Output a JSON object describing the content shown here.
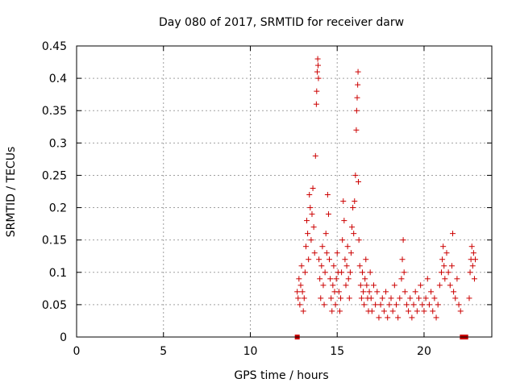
{
  "chart_data": {
    "type": "scatter",
    "title": "Day 080 of 2017, SRMTID for receiver darw",
    "xlabel": "GPS time / hours",
    "ylabel": "SRMTID / TECUs",
    "xlim": [
      0,
      23.9
    ],
    "ylim": [
      0,
      0.45
    ],
    "x_ticks": [
      0,
      5,
      10,
      15,
      20
    ],
    "y_ticks": [
      0,
      0.05,
      0.1,
      0.15,
      0.2,
      0.25,
      0.3,
      0.35,
      0.4,
      0.45
    ],
    "x_tick_labels": [
      "0",
      "5",
      "10",
      "15",
      "20"
    ],
    "y_tick_labels": [
      "0",
      "0.05",
      "0.1",
      "0.15",
      "0.2",
      "0.25",
      "0.3",
      "0.35",
      "0.4",
      "0.45"
    ],
    "grid": true,
    "marker": "plus",
    "color": "#cc0000",
    "series": [
      {
        "name": "SRMTID",
        "points": [
          [
            12.7,
            0.07
          ],
          [
            12.75,
            0.06
          ],
          [
            12.8,
            0.09
          ],
          [
            12.85,
            0.05
          ],
          [
            12.9,
            0.08
          ],
          [
            12.95,
            0.11
          ],
          [
            13.0,
            0.07
          ],
          [
            13.05,
            0.04
          ],
          [
            13.1,
            0.06
          ],
          [
            13.15,
            0.1
          ],
          [
            13.2,
            0.14
          ],
          [
            13.25,
            0.18
          ],
          [
            13.3,
            0.16
          ],
          [
            13.35,
            0.12
          ],
          [
            13.4,
            0.22
          ],
          [
            13.45,
            0.2
          ],
          [
            13.5,
            0.15
          ],
          [
            13.55,
            0.19
          ],
          [
            13.6,
            0.23
          ],
          [
            13.65,
            0.17
          ],
          [
            13.7,
            0.13
          ],
          [
            13.75,
            0.28
          ],
          [
            13.8,
            0.36
          ],
          [
            13.82,
            0.38
          ],
          [
            13.85,
            0.41
          ],
          [
            13.88,
            0.43
          ],
          [
            13.9,
            0.42
          ],
          [
            13.92,
            0.4
          ],
          [
            13.95,
            0.12
          ],
          [
            14.0,
            0.09
          ],
          [
            14.05,
            0.06
          ],
          [
            14.1,
            0.11
          ],
          [
            14.15,
            0.14
          ],
          [
            14.2,
            0.08
          ],
          [
            14.25,
            0.05
          ],
          [
            14.3,
            0.1
          ],
          [
            14.35,
            0.16
          ],
          [
            14.4,
            0.13
          ],
          [
            14.45,
            0.22
          ],
          [
            14.5,
            0.19
          ],
          [
            14.55,
            0.12
          ],
          [
            14.6,
            0.09
          ],
          [
            14.65,
            0.06
          ],
          [
            14.7,
            0.04
          ],
          [
            14.75,
            0.08
          ],
          [
            14.8,
            0.11
          ],
          [
            14.85,
            0.07
          ],
          [
            14.9,
            0.05
          ],
          [
            14.95,
            0.09
          ],
          [
            15.0,
            0.13
          ],
          [
            15.05,
            0.1
          ],
          [
            15.1,
            0.07
          ],
          [
            15.15,
            0.04
          ],
          [
            15.2,
            0.06
          ],
          [
            15.25,
            0.1
          ],
          [
            15.3,
            0.15
          ],
          [
            15.35,
            0.21
          ],
          [
            15.4,
            0.18
          ],
          [
            15.45,
            0.12
          ],
          [
            15.5,
            0.08
          ],
          [
            15.55,
            0.11
          ],
          [
            15.6,
            0.14
          ],
          [
            15.65,
            0.09
          ],
          [
            15.7,
            0.06
          ],
          [
            15.75,
            0.1
          ],
          [
            15.8,
            0.13
          ],
          [
            15.85,
            0.17
          ],
          [
            15.9,
            0.2
          ],
          [
            15.95,
            0.16
          ],
          [
            16.0,
            0.21
          ],
          [
            16.05,
            0.25
          ],
          [
            16.1,
            0.32
          ],
          [
            16.12,
            0.35
          ],
          [
            16.15,
            0.37
          ],
          [
            16.18,
            0.39
          ],
          [
            16.2,
            0.41
          ],
          [
            16.22,
            0.24
          ],
          [
            16.25,
            0.15
          ],
          [
            16.3,
            0.11
          ],
          [
            16.35,
            0.08
          ],
          [
            16.4,
            0.06
          ],
          [
            16.45,
            0.1
          ],
          [
            16.5,
            0.07
          ],
          [
            16.55,
            0.05
          ],
          [
            16.6,
            0.09
          ],
          [
            16.65,
            0.12
          ],
          [
            16.7,
            0.08
          ],
          [
            16.75,
            0.06
          ],
          [
            16.8,
            0.04
          ],
          [
            16.85,
            0.07
          ],
          [
            16.9,
            0.1
          ],
          [
            16.95,
            0.06
          ],
          [
            17.0,
            0.04
          ],
          [
            17.1,
            0.08
          ],
          [
            17.2,
            0.05
          ],
          [
            17.3,
            0.07
          ],
          [
            17.4,
            0.03
          ],
          [
            17.5,
            0.05
          ],
          [
            17.6,
            0.06
          ],
          [
            17.7,
            0.04
          ],
          [
            17.8,
            0.07
          ],
          [
            17.9,
            0.03
          ],
          [
            18.0,
            0.05
          ],
          [
            18.1,
            0.06
          ],
          [
            18.2,
            0.04
          ],
          [
            18.3,
            0.08
          ],
          [
            18.4,
            0.05
          ],
          [
            18.5,
            0.03
          ],
          [
            18.6,
            0.06
          ],
          [
            18.7,
            0.09
          ],
          [
            18.75,
            0.12
          ],
          [
            18.8,
            0.15
          ],
          [
            18.85,
            0.1
          ],
          [
            18.9,
            0.07
          ],
          [
            19.0,
            0.05
          ],
          [
            19.1,
            0.04
          ],
          [
            19.2,
            0.06
          ],
          [
            19.3,
            0.03
          ],
          [
            19.4,
            0.05
          ],
          [
            19.5,
            0.07
          ],
          [
            19.6,
            0.04
          ],
          [
            19.7,
            0.06
          ],
          [
            19.8,
            0.08
          ],
          [
            19.9,
            0.05
          ],
          [
            20.0,
            0.04
          ],
          [
            20.1,
            0.06
          ],
          [
            20.2,
            0.09
          ],
          [
            20.3,
            0.05
          ],
          [
            20.4,
            0.07
          ],
          [
            20.5,
            0.04
          ],
          [
            20.6,
            0.06
          ],
          [
            20.7,
            0.03
          ],
          [
            20.8,
            0.05
          ],
          [
            20.9,
            0.08
          ],
          [
            21.0,
            0.1
          ],
          [
            21.05,
            0.12
          ],
          [
            21.1,
            0.14
          ],
          [
            21.15,
            0.11
          ],
          [
            21.2,
            0.09
          ],
          [
            21.3,
            0.13
          ],
          [
            21.4,
            0.1
          ],
          [
            21.5,
            0.08
          ],
          [
            21.6,
            0.11
          ],
          [
            21.65,
            0.16
          ],
          [
            21.7,
            0.07
          ],
          [
            21.8,
            0.06
          ],
          [
            21.9,
            0.09
          ],
          [
            22.0,
            0.05
          ],
          [
            22.1,
            0.04
          ],
          [
            22.6,
            0.06
          ],
          [
            22.65,
            0.1
          ],
          [
            22.7,
            0.12
          ],
          [
            22.75,
            0.14
          ],
          [
            22.8,
            0.11
          ],
          [
            22.85,
            0.13
          ],
          [
            22.9,
            0.09
          ],
          [
            22.95,
            0.12
          ]
        ]
      }
    ],
    "baseline_markers": [
      12.7,
      22.2,
      22.4
    ]
  }
}
